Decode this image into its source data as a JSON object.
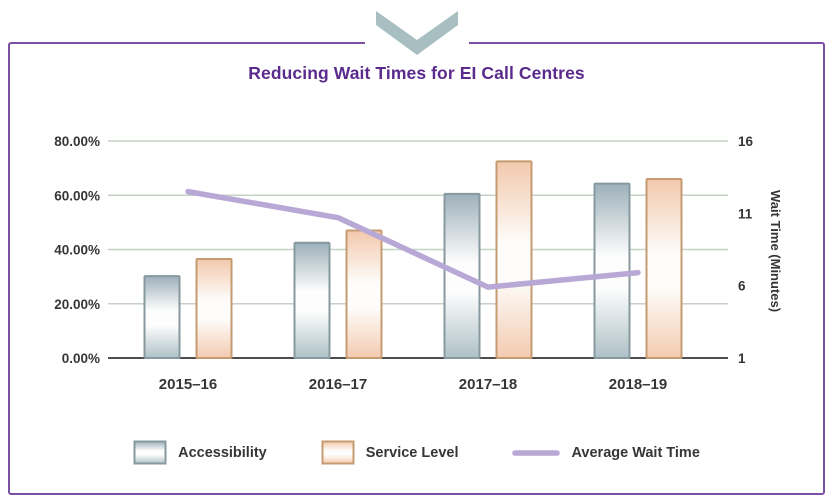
{
  "panel": {
    "border_color": "#7B4FA3",
    "chevron_color": "#A8BFC2",
    "grid_color": "#C6D2C4",
    "axis_line_color": "#4D4D4D",
    "text_color": "#363636"
  },
  "chart_data": {
    "type": "bar",
    "title": "Reducing Wait Times for EI Call Centres",
    "title_color": "#5A2B8C",
    "categories": [
      "2015–16",
      "2016–17",
      "2017–18",
      "2018–19"
    ],
    "series": [
      {
        "name": "Accessibility",
        "type": "bar",
        "axis": "left",
        "values": [
          30.2,
          42.5,
          60.5,
          64.3
        ],
        "fill_top": "#9DB0BA",
        "fill_mid": "#FDFDFD",
        "fill_bottom": "#AEC1C7",
        "border": "#87999F"
      },
      {
        "name": "Service Level",
        "type": "bar",
        "axis": "left",
        "values": [
          36.5,
          47.0,
          72.5,
          66.0
        ],
        "fill_top": "#F2C8AC",
        "fill_mid": "#FEFDFB",
        "fill_bottom": "#F3CBB0",
        "border": "#C59B72"
      },
      {
        "name": "Average Wait Time",
        "type": "line",
        "axis": "right",
        "values": [
          12.5,
          10.7,
          5.9,
          6.9
        ],
        "color": "#B7A8D5"
      }
    ],
    "left_axis": {
      "min": 0,
      "max": 80,
      "tick_values": [
        0,
        20,
        40,
        60,
        80
      ],
      "tick_labels": [
        "0.00%",
        "20.00%",
        "40.00%",
        "60.00%",
        "80.00%"
      ]
    },
    "right_axis": {
      "min": 1,
      "max": 16,
      "tick_values": [
        1,
        6,
        11,
        16
      ],
      "tick_labels": [
        "1",
        "6",
        "11",
        "16"
      ],
      "label": "Wait Time (Minutes)"
    },
    "grid": true,
    "legend_position": "bottom"
  }
}
